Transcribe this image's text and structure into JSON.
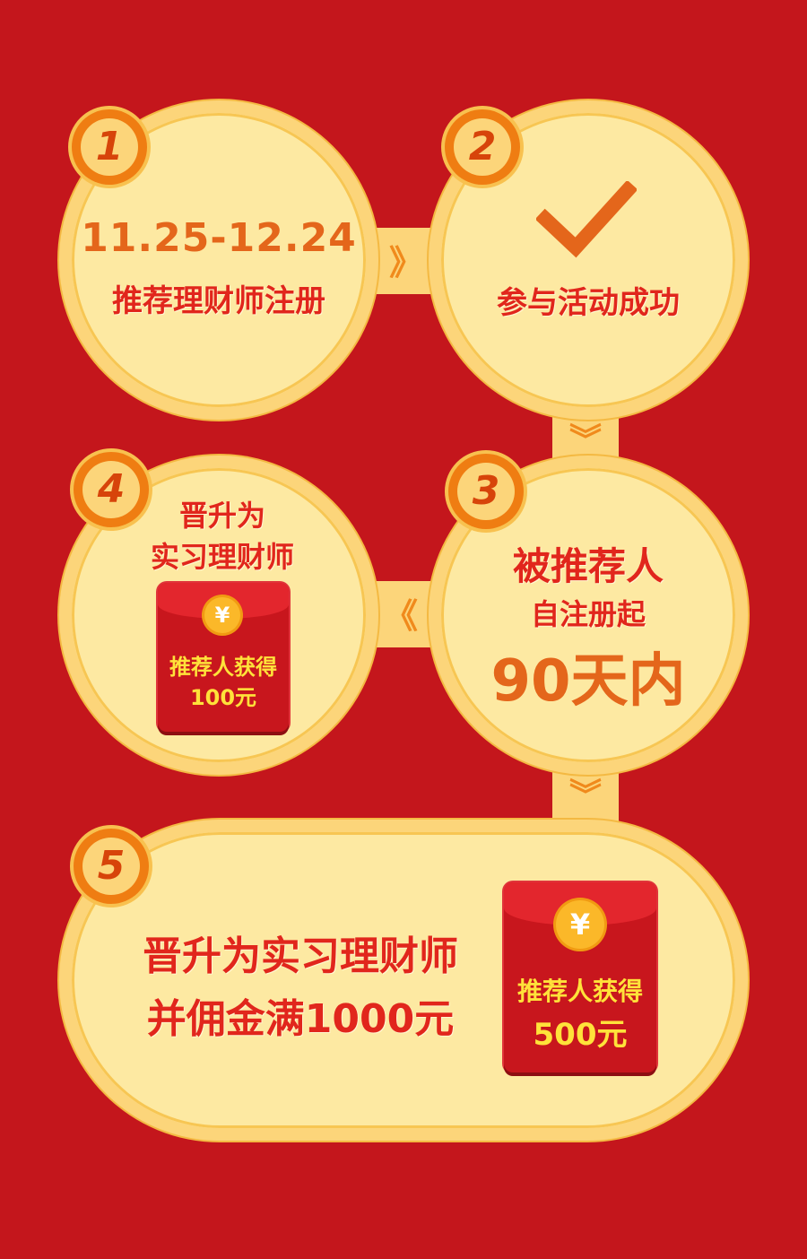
{
  "steps": {
    "s1": {
      "num": "1",
      "date": "11.25-12.24",
      "text": "推荐理财师注册"
    },
    "s2": {
      "num": "2",
      "text": "参与活动成功"
    },
    "s3": {
      "num": "3",
      "line1": "被推荐人",
      "line2": "自注册起",
      "line3": "90天内"
    },
    "s4": {
      "num": "4",
      "line1": "晋升为",
      "line2": "实习理财师"
    },
    "s5": {
      "num": "5",
      "line1": "晋升为实习理财师",
      "line2": "并佣金满1000元"
    }
  },
  "envelope_small": {
    "coin": "¥",
    "line1": "推荐人获得",
    "line2": "100元"
  },
  "envelope_large": {
    "coin": "¥",
    "line1": "推荐人获得",
    "line2": "500元"
  },
  "chevrons": {
    "right": "》",
    "left": "《",
    "down": "︾"
  },
  "colors": {
    "background": "#c4161c",
    "circle_fill": "#fde9a2",
    "ring": "#fcd57a",
    "badge": "#ef7d12",
    "text_red": "#e1261c",
    "coin": "#fbb829",
    "envelope_text": "#ffe23a"
  },
  "icons": {
    "check": "checkmark-icon"
  }
}
